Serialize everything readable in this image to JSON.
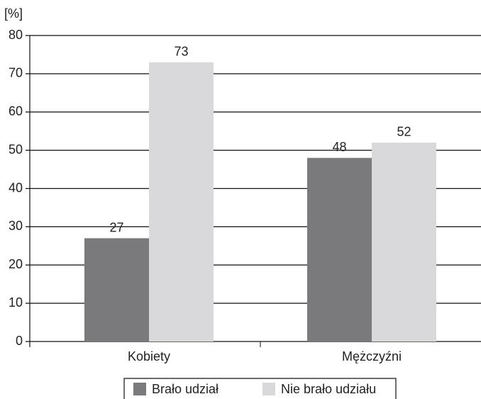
{
  "chart_data": {
    "type": "bar",
    "y_axis_label": "[%]",
    "categories": [
      "Kobiety",
      "Mężczyźni"
    ],
    "series": [
      {
        "name": "Brało udział",
        "color": "#7a7a7c",
        "values": [
          27,
          48
        ]
      },
      {
        "name": "Nie brało udziału",
        "color": "#d9d9db",
        "values": [
          73,
          52
        ]
      }
    ],
    "ylim": [
      0,
      80
    ],
    "yticks": [
      0,
      10,
      20,
      30,
      40,
      50,
      60,
      70,
      80
    ],
    "grid": true,
    "legend": "bottom"
  }
}
